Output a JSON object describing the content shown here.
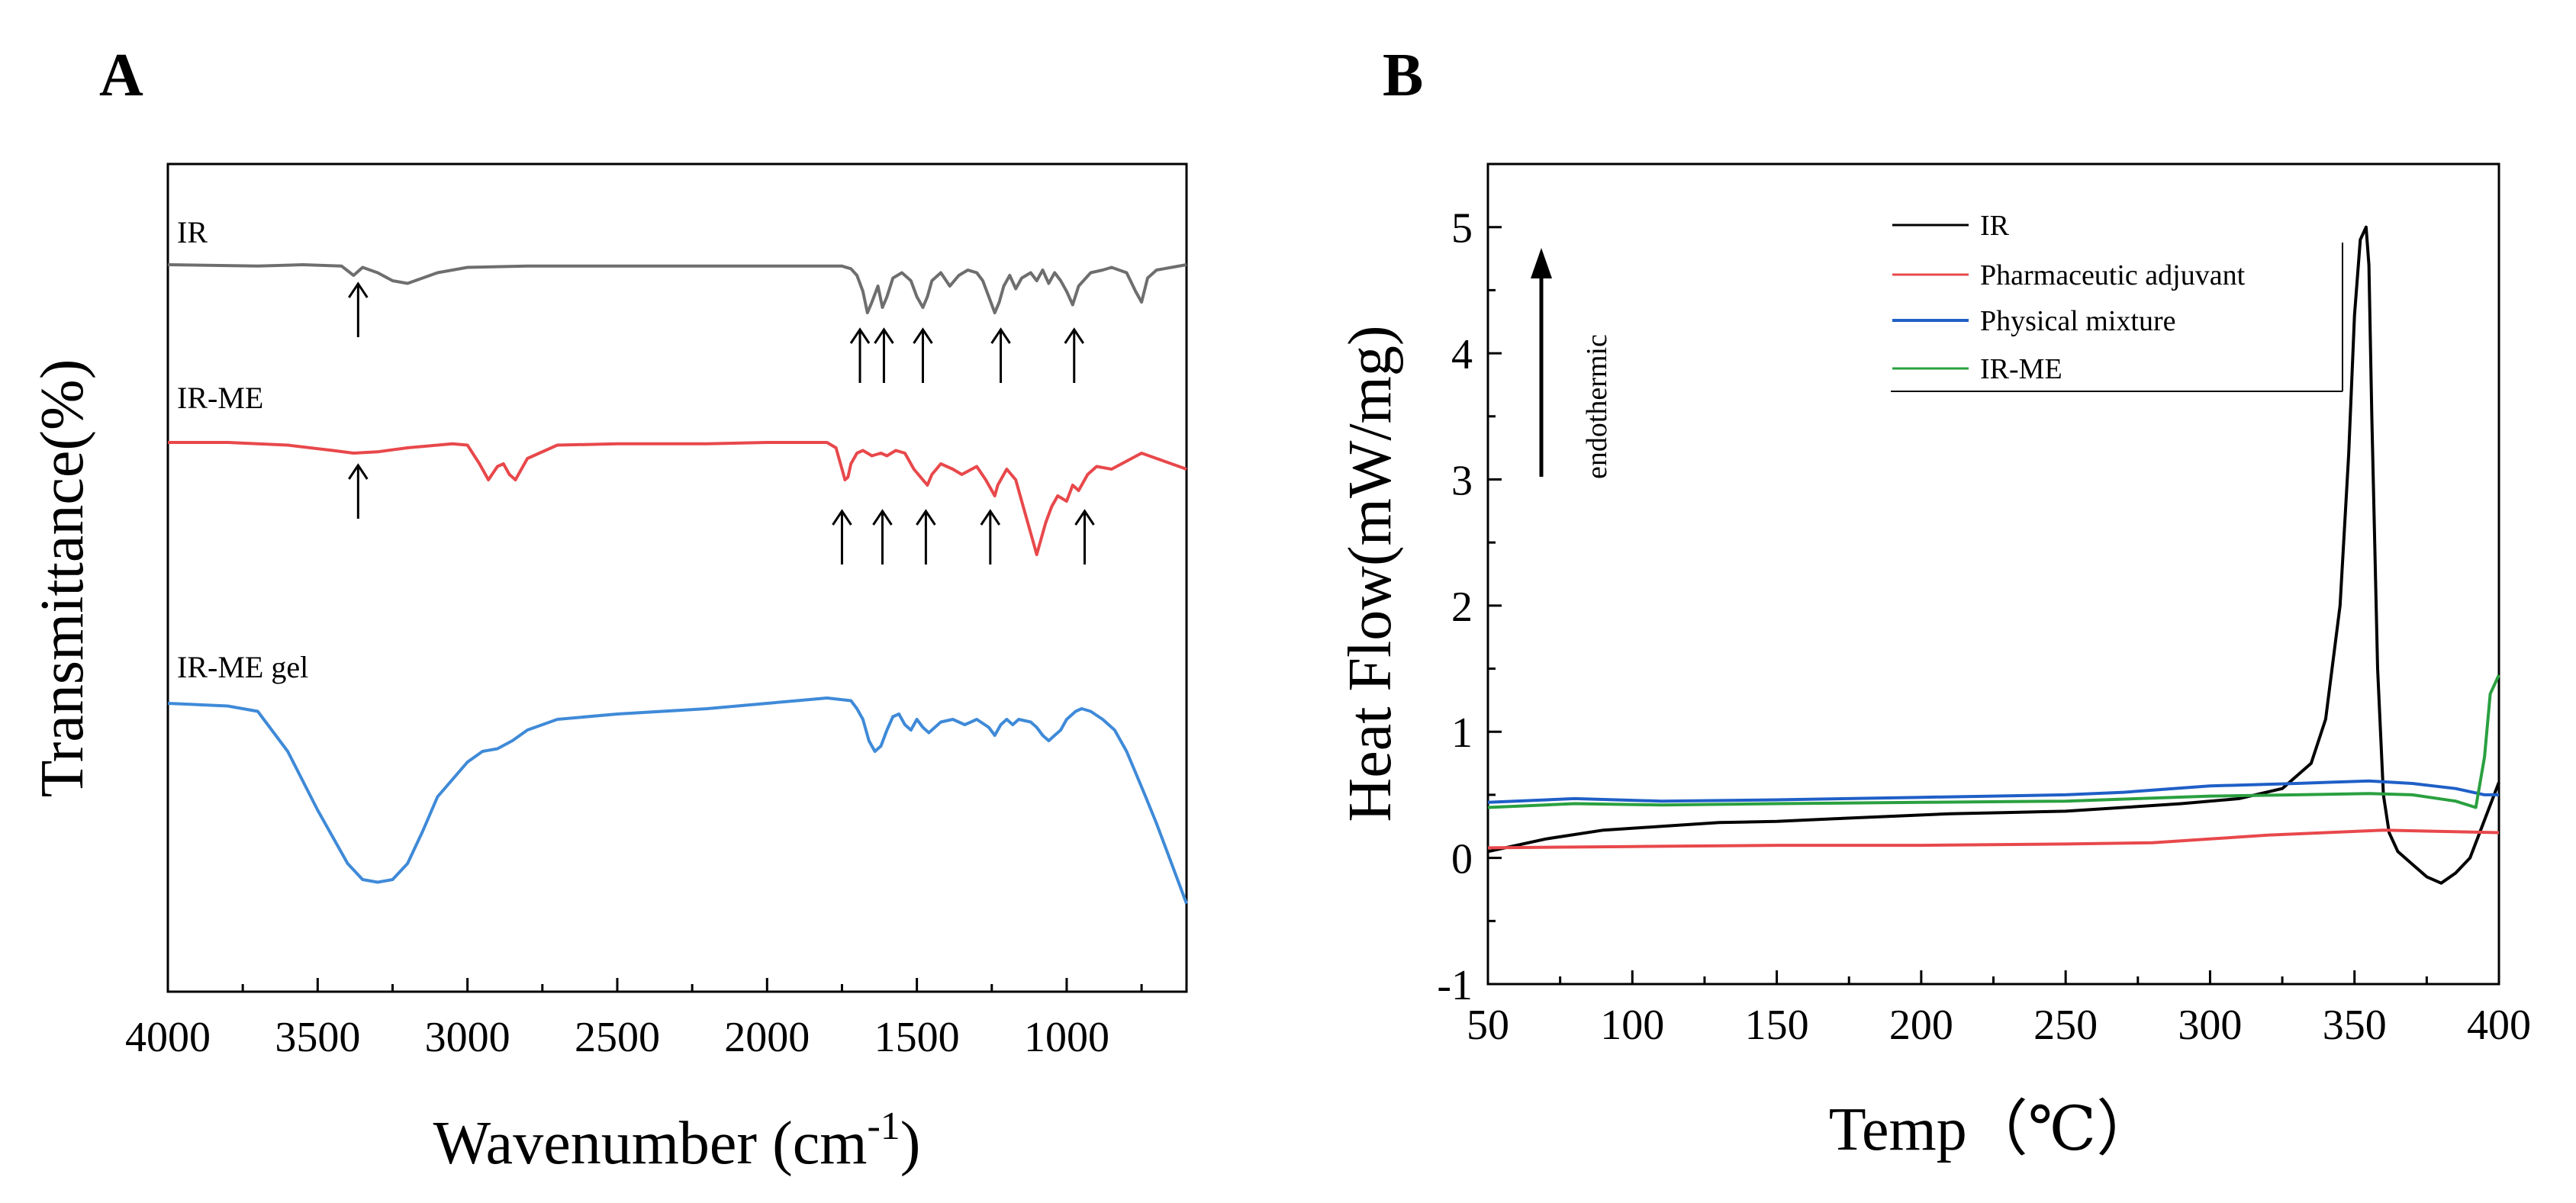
{
  "panels": [
    {
      "label": "A"
    },
    {
      "label": "B"
    }
  ],
  "colors": {
    "ir_gray": "#6e6e6e",
    "red": "#e8484b",
    "blue": "#3f8ad8",
    "dark_blue": "#1f5fc7",
    "green": "#2aa040",
    "black": "#000000"
  },
  "chart_data": [
    {
      "type": "line",
      "panel": "A",
      "title": "",
      "xlabel": "Wavenumber (cm",
      "xlabel_sup": "-1",
      "xlabel_end": ")",
      "ylabel": "Transmittance(%)",
      "xlim": [
        4000,
        600
      ],
      "x_ticks": [
        4000,
        3500,
        3000,
        2500,
        2000,
        1500,
        1000
      ],
      "y_ticks_shown": false,
      "series": [
        {
          "name": "IR",
          "color": "#6e6e6e",
          "baseline_offset": 0,
          "x": [
            4000,
            3700,
            3550,
            3420,
            3380,
            3350,
            3300,
            3250,
            3200,
            3150,
            3100,
            3000,
            2800,
            2500,
            2000,
            1750,
            1720,
            1700,
            1680,
            1665,
            1650,
            1630,
            1615,
            1600,
            1580,
            1550,
            1520,
            1500,
            1480,
            1465,
            1450,
            1420,
            1390,
            1360,
            1330,
            1300,
            1280,
            1260,
            1240,
            1225,
            1210,
            1190,
            1170,
            1150,
            1120,
            1100,
            1080,
            1060,
            1040,
            1020,
            1000,
            980,
            960,
            920,
            880,
            850,
            800,
            770,
            750,
            730,
            700,
            650,
            600
          ],
          "y": [
            0,
            0.5,
            0,
            0.5,
            4,
            1,
            3,
            6,
            7,
            5,
            3,
            1,
            0.5,
            0.5,
            0.5,
            0.5,
            1.5,
            4,
            10,
            18,
            14,
            8,
            16,
            12,
            5,
            3,
            6,
            12,
            16,
            12,
            6,
            3,
            8,
            4,
            2,
            3,
            6,
            12,
            18,
            14,
            8,
            4,
            9,
            5,
            3,
            6,
            2,
            7,
            3,
            6,
            10,
            15,
            8,
            3,
            2,
            1,
            3,
            10,
            14,
            5,
            2,
            1,
            0
          ]
        },
        {
          "name": "IR-ME",
          "color": "#e8484b",
          "baseline_offset": 1,
          "x": [
            4000,
            3800,
            3600,
            3450,
            3380,
            3300,
            3200,
            3050,
            3000,
            2960,
            2930,
            2900,
            2880,
            2860,
            2840,
            2800,
            2700,
            2500,
            2200,
            2000,
            1800,
            1770,
            1750,
            1740,
            1730,
            1720,
            1700,
            1680,
            1650,
            1620,
            1600,
            1570,
            1540,
            1510,
            1480,
            1465,
            1450,
            1420,
            1380,
            1350,
            1300,
            1270,
            1250,
            1240,
            1230,
            1200,
            1170,
            1150,
            1130,
            1110,
            1100,
            1090,
            1070,
            1050,
            1030,
            1000,
            980,
            960,
            930,
            900,
            850,
            800,
            750,
            700,
            650,
            600
          ],
          "y": [
            0,
            0,
            1,
            3,
            4,
            3.5,
            2,
            0.5,
            1,
            8,
            14,
            9,
            8,
            12,
            14,
            6,
            1,
            0.5,
            0.5,
            0,
            0,
            2,
            10,
            14,
            13,
            8,
            4,
            3,
            5,
            4,
            5,
            3,
            4,
            10,
            14,
            16,
            12,
            8,
            10,
            12,
            9,
            14,
            18,
            20,
            16,
            10,
            14,
            22,
            30,
            38,
            42,
            38,
            30,
            24,
            20,
            22,
            16,
            18,
            12,
            9,
            10,
            7,
            4,
            6,
            8,
            10
          ]
        },
        {
          "name": "IR-ME gel",
          "color": "#3f8ad8",
          "baseline_offset": 2,
          "x": [
            4000,
            3800,
            3700,
            3600,
            3500,
            3400,
            3350,
            3300,
            3250,
            3200,
            3150,
            3100,
            3000,
            2950,
            2900,
            2850,
            2800,
            2700,
            2500,
            2200,
            2000,
            1900,
            1800,
            1720,
            1700,
            1680,
            1660,
            1640,
            1620,
            1600,
            1580,
            1560,
            1540,
            1520,
            1500,
            1480,
            1460,
            1420,
            1380,
            1340,
            1300,
            1260,
            1240,
            1220,
            1200,
            1180,
            1160,
            1120,
            1100,
            1080,
            1060,
            1040,
            1020,
            1000,
            970,
            950,
            920,
            880,
            840,
            800,
            770,
            740,
            700,
            650,
            600
          ],
          "y": [
            0,
            1,
            3,
            18,
            40,
            60,
            66,
            67,
            66,
            60,
            48,
            35,
            22,
            18,
            17,
            14,
            10,
            6,
            4,
            2,
            0,
            -1,
            -2,
            -1,
            2,
            6,
            14,
            18,
            16,
            10,
            5,
            4,
            8,
            10,
            6,
            9,
            11,
            7,
            6,
            8,
            6,
            9,
            12,
            8,
            6,
            8,
            6,
            7,
            9,
            12,
            14,
            12,
            10,
            6,
            3,
            2,
            3,
            6,
            10,
            18,
            26,
            34,
            45,
            60,
            75
          ]
        }
      ],
      "arrows_at_wavenumbers": {
        "IR": [
          3365,
          1690,
          1610,
          1480,
          1220,
          975
        ],
        "IR-ME": [
          3365,
          1750,
          1615,
          1470,
          1255,
          940
        ]
      }
    },
    {
      "type": "line",
      "panel": "B",
      "title": "",
      "xlabel": "Temp（℃）",
      "ylabel": "Heat Flow(mW/mg)",
      "xlim": [
        50,
        400
      ],
      "ylim": [
        -1,
        5.5
      ],
      "x_ticks": [
        50,
        100,
        150,
        200,
        250,
        300,
        350,
        400
      ],
      "y_ticks": [
        -1,
        0,
        1,
        2,
        3,
        4,
        5
      ],
      "annotation": "endothermic",
      "legend_position": "top-right",
      "series": [
        {
          "name": "IR",
          "color": "#000000",
          "x": [
            50,
            70,
            90,
            110,
            130,
            150,
            170,
            190,
            210,
            230,
            250,
            270,
            290,
            310,
            325,
            335,
            340,
            345,
            348,
            350,
            352,
            354,
            355,
            356,
            358,
            360,
            362,
            365,
            370,
            375,
            380,
            385,
            390,
            395,
            400
          ],
          "y": [
            0.05,
            0.15,
            0.22,
            0.25,
            0.28,
            0.29,
            0.31,
            0.33,
            0.35,
            0.36,
            0.37,
            0.4,
            0.43,
            0.47,
            0.55,
            0.75,
            1.1,
            2.0,
            3.2,
            4.3,
            4.9,
            5.0,
            4.7,
            3.5,
            1.5,
            0.5,
            0.2,
            0.05,
            -0.05,
            -0.15,
            -0.2,
            -0.12,
            0.0,
            0.3,
            0.6
          ]
        },
        {
          "name": "Pharmaceutic adjuvant",
          "color": "#e8484b",
          "x": [
            50,
            100,
            150,
            200,
            250,
            280,
            300,
            320,
            340,
            360,
            380,
            400
          ],
          "y": [
            0.08,
            0.09,
            0.1,
            0.1,
            0.11,
            0.12,
            0.15,
            0.18,
            0.2,
            0.22,
            0.21,
            0.2
          ]
        },
        {
          "name": "Physical mixture",
          "color": "#1f5fc7",
          "x": [
            50,
            80,
            110,
            150,
            200,
            250,
            270,
            300,
            330,
            355,
            370,
            385,
            395,
            400
          ],
          "y": [
            0.44,
            0.47,
            0.45,
            0.46,
            0.48,
            0.5,
            0.52,
            0.57,
            0.59,
            0.61,
            0.59,
            0.55,
            0.5,
            0.5
          ]
        },
        {
          "name": "IR-ME",
          "color": "#2aa040",
          "x": [
            50,
            80,
            110,
            150,
            200,
            250,
            300,
            330,
            355,
            370,
            385,
            392,
            395,
            397,
            400
          ],
          "y": [
            0.4,
            0.43,
            0.42,
            0.43,
            0.44,
            0.45,
            0.49,
            0.5,
            0.51,
            0.5,
            0.45,
            0.4,
            0.8,
            1.3,
            1.45
          ]
        }
      ]
    }
  ]
}
